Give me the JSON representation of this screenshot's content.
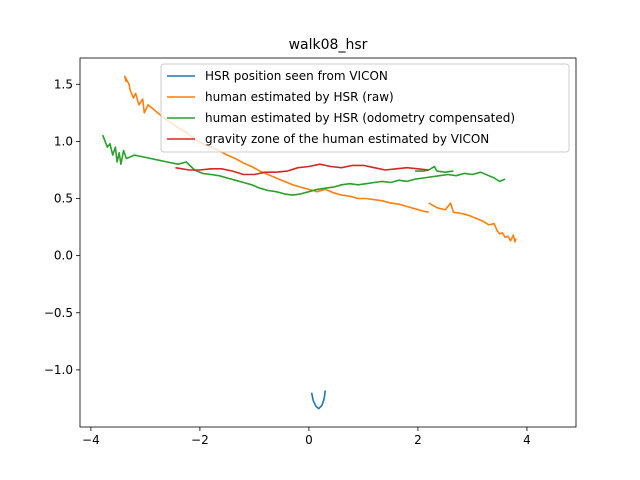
{
  "chart_data": {
    "type": "line",
    "title": "walk08_hsr",
    "xlabel": "",
    "ylabel": "",
    "xlim": [
      -4.2,
      4.9
    ],
    "ylim": [
      -1.5,
      1.73
    ],
    "grid": false,
    "legend_placement": "upper-right",
    "x_ticks": [
      {
        "value": -4,
        "label": "−4"
      },
      {
        "value": -2,
        "label": "−2"
      },
      {
        "value": 0,
        "label": "0"
      },
      {
        "value": 2,
        "label": "2"
      },
      {
        "value": 4,
        "label": "4"
      }
    ],
    "y_ticks": [
      {
        "value": 1.5,
        "label": "1.5"
      },
      {
        "value": 1.0,
        "label": "1.0"
      },
      {
        "value": 0.5,
        "label": "0.5"
      },
      {
        "value": 0.0,
        "label": "0.0"
      },
      {
        "value": -0.5,
        "label": "−0.5"
      },
      {
        "value": -1.0,
        "label": "−1.0"
      }
    ],
    "series": [
      {
        "name": "HSR position seen from VICON",
        "color": "#1f77b4",
        "points": [
          [
            0.05,
            -1.2
          ],
          [
            0.08,
            -1.27
          ],
          [
            0.13,
            -1.32
          ],
          [
            0.18,
            -1.34
          ],
          [
            0.24,
            -1.31
          ],
          [
            0.28,
            -1.25
          ],
          [
            0.3,
            -1.18
          ]
        ]
      },
      {
        "name": "human estimated by HSR (raw)",
        "color": "#ff7f0e",
        "points": [
          [
            -3.35,
            1.52
          ],
          [
            -3.38,
            1.57
          ],
          [
            -3.3,
            1.5
          ],
          [
            -3.28,
            1.45
          ],
          [
            -3.22,
            1.38
          ],
          [
            -3.18,
            1.42
          ],
          [
            -3.12,
            1.32
          ],
          [
            -3.05,
            1.37
          ],
          [
            -3.02,
            1.25
          ],
          [
            -2.95,
            1.32
          ],
          [
            -2.85,
            1.28
          ],
          [
            -2.7,
            1.22
          ],
          [
            -2.55,
            1.17
          ],
          [
            -2.4,
            1.12
          ],
          [
            -2.25,
            1.08
          ],
          [
            -2.1,
            1.02
          ],
          [
            -1.95,
            0.98
          ],
          [
            -1.8,
            0.95
          ],
          [
            -1.65,
            0.92
          ],
          [
            -1.5,
            0.88
          ],
          [
            -1.35,
            0.85
          ],
          [
            -1.2,
            0.81
          ],
          [
            -1.05,
            0.78
          ],
          [
            -0.9,
            0.74
          ],
          [
            -0.75,
            0.71
          ],
          [
            -0.6,
            0.68
          ],
          [
            -0.45,
            0.65
          ],
          [
            -0.3,
            0.62
          ],
          [
            -0.15,
            0.6
          ],
          [
            0.0,
            0.58
          ],
          [
            0.15,
            0.56
          ],
          [
            0.3,
            0.58
          ],
          [
            0.45,
            0.55
          ],
          [
            0.6,
            0.53
          ],
          [
            0.75,
            0.52
          ],
          [
            0.9,
            0.5
          ],
          [
            1.05,
            0.5
          ],
          [
            1.2,
            0.49
          ],
          [
            1.35,
            0.48
          ],
          [
            1.5,
            0.46
          ],
          [
            1.65,
            0.45
          ],
          [
            1.8,
            0.43
          ],
          [
            1.95,
            0.41
          ],
          [
            2.1,
            0.39
          ],
          [
            2.2,
            0.38
          ]
        ]
      },
      {
        "name": "human estimated by HSR (raw) segment",
        "color": "#ff7f0e",
        "points": [
          [
            2.2,
            0.46
          ],
          [
            2.35,
            0.42
          ],
          [
            2.5,
            0.4
          ],
          [
            2.6,
            0.46
          ],
          [
            2.65,
            0.38
          ],
          [
            2.8,
            0.37
          ],
          [
            2.95,
            0.35
          ],
          [
            3.1,
            0.32
          ],
          [
            3.2,
            0.3
          ],
          [
            3.3,
            0.27
          ],
          [
            3.4,
            0.28
          ],
          [
            3.45,
            0.22
          ],
          [
            3.5,
            0.19
          ],
          [
            3.55,
            0.2
          ],
          [
            3.6,
            0.16
          ],
          [
            3.65,
            0.17
          ],
          [
            3.7,
            0.13
          ],
          [
            3.75,
            0.18
          ],
          [
            3.78,
            0.12
          ],
          [
            3.8,
            0.15
          ]
        ]
      },
      {
        "name": "human estimated by HSR (odometry compensated)",
        "color": "#2ca02c",
        "points": [
          [
            -3.75,
            1.02
          ],
          [
            -3.78,
            1.05
          ],
          [
            -3.7,
            0.95
          ],
          [
            -3.65,
            0.98
          ],
          [
            -3.6,
            0.88
          ],
          [
            -3.55,
            0.95
          ],
          [
            -3.52,
            0.82
          ],
          [
            -3.48,
            0.9
          ],
          [
            -3.45,
            0.8
          ],
          [
            -3.4,
            0.92
          ],
          [
            -3.35,
            0.85
          ],
          [
            -3.2,
            0.88
          ],
          [
            -3.0,
            0.86
          ],
          [
            -2.8,
            0.84
          ],
          [
            -2.6,
            0.82
          ],
          [
            -2.4,
            0.8
          ],
          [
            -2.25,
            0.82
          ],
          [
            -2.1,
            0.75
          ],
          [
            -1.95,
            0.72
          ],
          [
            -1.8,
            0.71
          ],
          [
            -1.65,
            0.7
          ],
          [
            -1.5,
            0.68
          ],
          [
            -1.35,
            0.66
          ],
          [
            -1.2,
            0.64
          ],
          [
            -1.05,
            0.62
          ],
          [
            -0.9,
            0.59
          ],
          [
            -0.75,
            0.57
          ],
          [
            -0.6,
            0.56
          ],
          [
            -0.45,
            0.54
          ],
          [
            -0.3,
            0.53
          ],
          [
            -0.15,
            0.54
          ],
          [
            0.0,
            0.56
          ],
          [
            0.15,
            0.58
          ],
          [
            0.3,
            0.59
          ],
          [
            0.45,
            0.6
          ],
          [
            0.6,
            0.62
          ],
          [
            0.75,
            0.63
          ],
          [
            0.9,
            0.62
          ],
          [
            1.05,
            0.63
          ],
          [
            1.2,
            0.64
          ],
          [
            1.35,
            0.65
          ],
          [
            1.5,
            0.64
          ],
          [
            1.65,
            0.66
          ],
          [
            1.8,
            0.65
          ],
          [
            1.95,
            0.67
          ],
          [
            2.1,
            0.68
          ],
          [
            2.25,
            0.69
          ],
          [
            2.4,
            0.7
          ],
          [
            2.55,
            0.71
          ],
          [
            2.7,
            0.7
          ],
          [
            2.85,
            0.72
          ],
          [
            3.0,
            0.71
          ],
          [
            3.15,
            0.73
          ],
          [
            3.3,
            0.7
          ],
          [
            3.4,
            0.68
          ],
          [
            3.5,
            0.65
          ],
          [
            3.6,
            0.67
          ]
        ]
      },
      {
        "name": "human estimated by HSR (odometry compensated) segment",
        "color": "#2ca02c",
        "points": [
          [
            1.95,
            0.74
          ],
          [
            2.1,
            0.74
          ],
          [
            2.2,
            0.75
          ],
          [
            2.3,
            0.78
          ],
          [
            2.35,
            0.74
          ],
          [
            2.5,
            0.73
          ],
          [
            2.65,
            0.74
          ]
        ]
      },
      {
        "name": "gravity zone of the human estimated by VICON",
        "color": "#d62728",
        "points": [
          [
            -2.45,
            0.77
          ],
          [
            -2.2,
            0.75
          ],
          [
            -2.0,
            0.75
          ],
          [
            -1.8,
            0.76
          ],
          [
            -1.6,
            0.76
          ],
          [
            -1.4,
            0.74
          ],
          [
            -1.2,
            0.71
          ],
          [
            -1.0,
            0.71
          ],
          [
            -0.8,
            0.73
          ],
          [
            -0.6,
            0.73
          ],
          [
            -0.4,
            0.74
          ],
          [
            -0.2,
            0.77
          ],
          [
            0.0,
            0.78
          ],
          [
            0.2,
            0.8
          ],
          [
            0.4,
            0.78
          ],
          [
            0.6,
            0.77
          ],
          [
            0.8,
            0.79
          ],
          [
            1.0,
            0.79
          ],
          [
            1.2,
            0.77
          ],
          [
            1.4,
            0.75
          ],
          [
            1.6,
            0.76
          ],
          [
            1.8,
            0.77
          ],
          [
            2.0,
            0.76
          ],
          [
            2.2,
            0.75
          ]
        ]
      }
    ],
    "legend": [
      {
        "label": "HSR position seen from VICON",
        "color": "#1f77b4"
      },
      {
        "label": "human estimated by HSR (raw)",
        "color": "#ff7f0e"
      },
      {
        "label": "human estimated by HSR (odometry compensated)",
        "color": "#2ca02c"
      },
      {
        "label": "gravity zone of the human estimated by VICON",
        "color": "#d62728"
      }
    ]
  }
}
